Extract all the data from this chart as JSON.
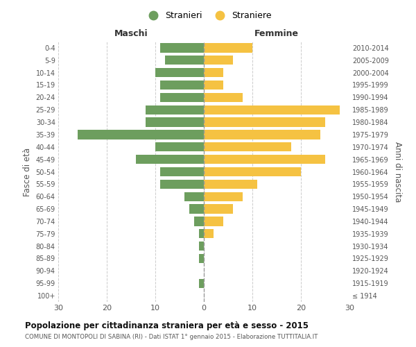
{
  "age_groups": [
    "100+",
    "95-99",
    "90-94",
    "85-89",
    "80-84",
    "75-79",
    "70-74",
    "65-69",
    "60-64",
    "55-59",
    "50-54",
    "45-49",
    "40-44",
    "35-39",
    "30-34",
    "25-29",
    "20-24",
    "15-19",
    "10-14",
    "5-9",
    "0-4"
  ],
  "birth_years": [
    "≤ 1914",
    "1915-1919",
    "1920-1924",
    "1925-1929",
    "1930-1934",
    "1935-1939",
    "1940-1944",
    "1945-1949",
    "1950-1954",
    "1955-1959",
    "1960-1964",
    "1965-1969",
    "1970-1974",
    "1975-1979",
    "1980-1984",
    "1985-1989",
    "1990-1994",
    "1995-1999",
    "2000-2004",
    "2005-2009",
    "2010-2014"
  ],
  "males": [
    0,
    1,
    0,
    1,
    1,
    1,
    2,
    3,
    4,
    9,
    9,
    14,
    10,
    26,
    12,
    12,
    9,
    9,
    10,
    8,
    9
  ],
  "females": [
    0,
    0,
    0,
    0,
    0,
    2,
    4,
    6,
    8,
    11,
    20,
    25,
    18,
    24,
    25,
    28,
    8,
    4,
    4,
    6,
    10
  ],
  "male_color": "#6d9e5e",
  "female_color": "#f5c242",
  "background_color": "#ffffff",
  "grid_color": "#cccccc",
  "title": "Popolazione per cittadinanza straniera per età e sesso - 2015",
  "subtitle": "COMUNE DI MONTOPOLI DI SABINA (RI) - Dati ISTAT 1° gennaio 2015 - Elaborazione TUTTITALIA.IT",
  "ylabel_left": "Fasce di età",
  "ylabel_right": "Anni di nascita",
  "xlabel_left": "Maschi",
  "xlabel_right": "Femmine",
  "legend_male": "Stranieri",
  "legend_female": "Straniere",
  "xlim": 30
}
